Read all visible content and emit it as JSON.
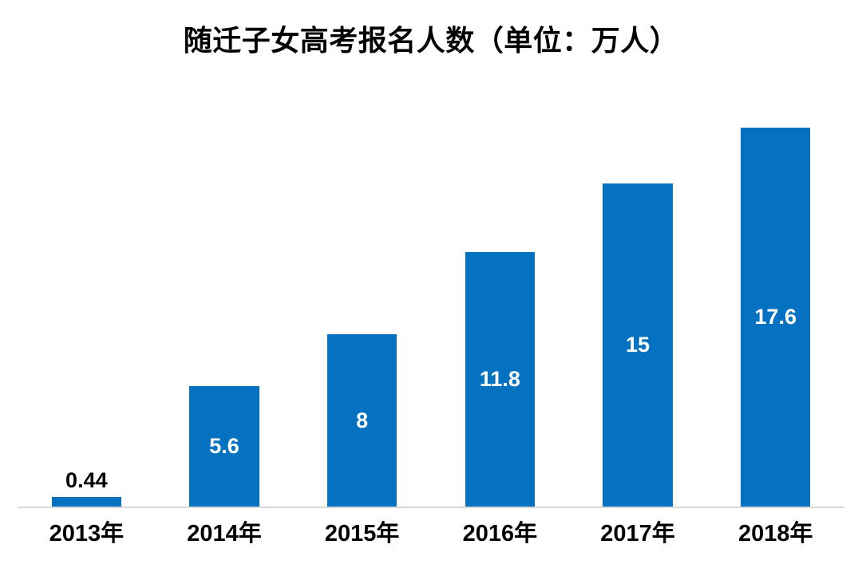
{
  "page": {
    "background_color": "#ffffff"
  },
  "chart_data": {
    "type": "bar",
    "title": "随迁子女高考报名人数（单位：万人）",
    "unit": "万人",
    "categories": [
      "2013年",
      "2014年",
      "2015年",
      "2016年",
      "2017年",
      "2018年"
    ],
    "values": [
      0.44,
      5.6,
      8,
      11.8,
      15,
      17.6
    ],
    "data_labels": [
      "0.44",
      "5.6",
      "8",
      "11.8",
      "15",
      "17.6"
    ],
    "label_placement": [
      "above",
      "inside",
      "inside",
      "inside",
      "inside",
      "inside"
    ],
    "xlabel": "",
    "ylabel": "",
    "ylim": [
      0,
      20
    ],
    "grid": false,
    "legend": false,
    "y_axis_visible": false,
    "bar_color": "#0572c1",
    "axis_line_color": "#d9d9d9",
    "label_color_inside": "#ffffff",
    "label_color_above": "#000000",
    "title_color": "#000000",
    "tick_label_color": "#000000"
  }
}
